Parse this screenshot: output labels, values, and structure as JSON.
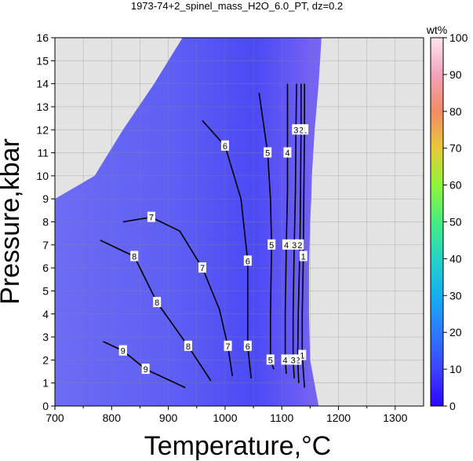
{
  "chart_data": {
    "type": "heatmap",
    "title": "1973-74+2_spinel_mass_H2O_6.0_PT, dz=0.2",
    "xlabel": "Temperature,°C",
    "ylabel": "Pressure,kbar",
    "xlim": [
      700,
      1350
    ],
    "ylim": [
      0,
      16
    ],
    "xticks": [
      "700",
      "800",
      "900",
      "1000",
      "1100",
      "1200",
      "1300"
    ],
    "yticks": [
      "0",
      "1",
      "2",
      "3",
      "4",
      "5",
      "6",
      "7",
      "8",
      "9",
      "10",
      "11",
      "12",
      "13",
      "14",
      "15",
      "16"
    ],
    "grid": true,
    "colorbar": {
      "label": "wt%",
      "range": [
        0,
        100
      ],
      "ticks": [
        "0",
        "10",
        "20",
        "30",
        "40",
        "50",
        "60",
        "70",
        "80",
        "90",
        "100"
      ]
    },
    "field_boundary": {
      "pressure": [
        0,
        2,
        4,
        6,
        8,
        9,
        10,
        12,
        14,
        16
      ],
      "t_low": [
        700,
        700,
        700,
        700,
        700,
        700,
        770,
        820,
        875,
        925
      ],
      "t_high": [
        1165,
        1150,
        1148,
        1148,
        1150,
        1152,
        1153,
        1158,
        1165,
        1170
      ]
    },
    "contours": [
      {
        "level": 1,
        "p": [
          0.8,
          2.2,
          4.0,
          6.5,
          9.4,
          12.0,
          14.0
        ],
        "t": [
          1140,
          1136,
          1136,
          1138,
          1139,
          1140,
          1140
        ]
      },
      {
        "level": 2,
        "p": [
          1.0,
          2.0,
          4.0,
          7.0,
          9.3,
          12.0,
          14.0
        ],
        "t": [
          1130,
          1128,
          1129,
          1132,
          1133,
          1134,
          1134
        ]
      },
      {
        "level": 3,
        "p": [
          1.2,
          2.0,
          4.0,
          7.0,
          9.3,
          12.0,
          14.0
        ],
        "t": [
          1122,
          1120,
          1120,
          1122,
          1124,
          1125,
          1126
        ]
      },
      {
        "level": 4,
        "p": [
          1.4,
          2.0,
          4.0,
          7.0,
          9.3,
          11.0,
          14.0
        ],
        "t": [
          1108,
          1106,
          1106,
          1108,
          1110,
          1110,
          1110
        ]
      },
      {
        "level": 5,
        "p": [
          1.6,
          2.0,
          4.0,
          7.0,
          9.0,
          11.0,
          13.6
        ],
        "t": [
          1086,
          1080,
          1080,
          1082,
          1080,
          1075,
          1060
        ]
      },
      {
        "level": 6,
        "p": [
          1.2,
          2.6,
          4.0,
          6.3,
          9.0,
          11.3,
          12.4
        ],
        "t": [
          1046,
          1040,
          1040,
          1040,
          1028,
          1000,
          960
        ]
      },
      {
        "level": 7,
        "p": [
          1.3,
          2.6,
          4.2,
          6.0,
          7.6,
          8.2,
          8.0
        ],
        "t": [
          1013,
          1005,
          990,
          960,
          920,
          870,
          820
        ]
      },
      {
        "level": 8,
        "p": [
          1.1,
          2.6,
          4.5,
          6.5,
          7.2
        ],
        "t": [
          975,
          935,
          880,
          840,
          780
        ]
      },
      {
        "level": 9,
        "p": [
          0.8,
          1.6,
          2.4,
          2.8
        ],
        "t": [
          930,
          860,
          820,
          785
        ]
      }
    ]
  },
  "contour_labels": [
    "1",
    "2",
    "3",
    "4",
    "5",
    "6",
    "7",
    "8",
    "9"
  ]
}
